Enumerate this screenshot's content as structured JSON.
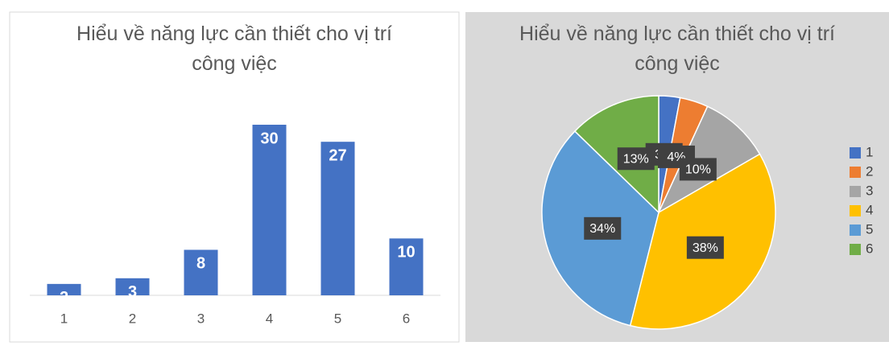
{
  "chart_data": [
    {
      "type": "bar",
      "title": "Hiểu về năng lực cần thiết cho vị trí công việc",
      "categories": [
        "1",
        "2",
        "3",
        "4",
        "5",
        "6"
      ],
      "values": [
        2,
        3,
        8,
        30,
        27,
        10
      ],
      "color": "#4472c4"
    },
    {
      "type": "pie",
      "title": "Hiểu về năng lực cần thiết cho vị trí công việc",
      "categories": [
        "1",
        "2",
        "3",
        "4",
        "5",
        "6"
      ],
      "values": [
        3,
        4,
        10,
        38,
        34,
        13
      ],
      "value_labels": [
        "3%",
        "4%",
        "10%",
        "38%",
        "34%",
        "13%"
      ],
      "colors": [
        "#4472c4",
        "#ed7d31",
        "#a5a5a5",
        "#ffc000",
        "#5b9bd5",
        "#70ad47"
      ],
      "legend": "right"
    }
  ]
}
